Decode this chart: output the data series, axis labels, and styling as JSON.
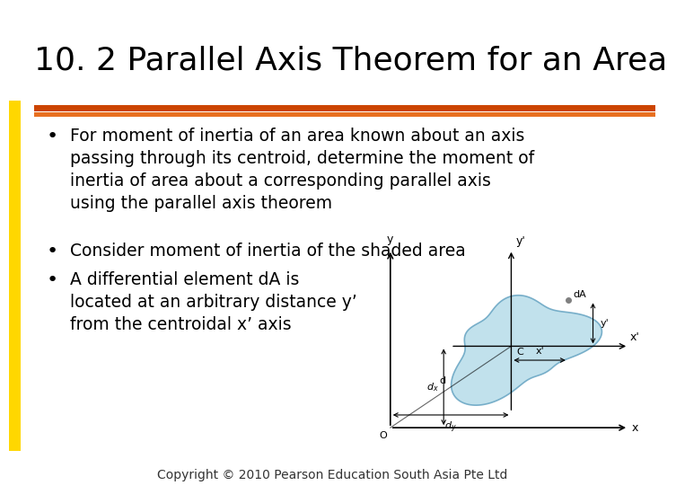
{
  "title": "10. 2 Parallel Axis Theorem for an Area",
  "title_fontsize": 26,
  "title_color": "#000000",
  "background_color": "#ffffff",
  "left_bar_color": "#FFD700",
  "orange_bar_color": "#CC4400",
  "orange_bar2_color": "#E87020",
  "bullet1": "For moment of inertia of an area known about an axis\npassing through its centroid, determine the moment of\ninertia of area about a corresponding parallel axis\nusing the parallel axis theorem",
  "bullet2": "Consider moment of inertia of the shaded area",
  "bullet3": "A differential element dA is\nlocated at an arbitrary distance y’\nfrom the centroidal x’ axis",
  "bullet_fontsize": 13.5,
  "copyright": "Copyright © 2010 Pearson Education South Asia Pte Ltd",
  "copyright_fontsize": 10,
  "shape_fill": "#ADD8E6",
  "shape_edge": "#5599BB",
  "shape_alpha": 0.75
}
